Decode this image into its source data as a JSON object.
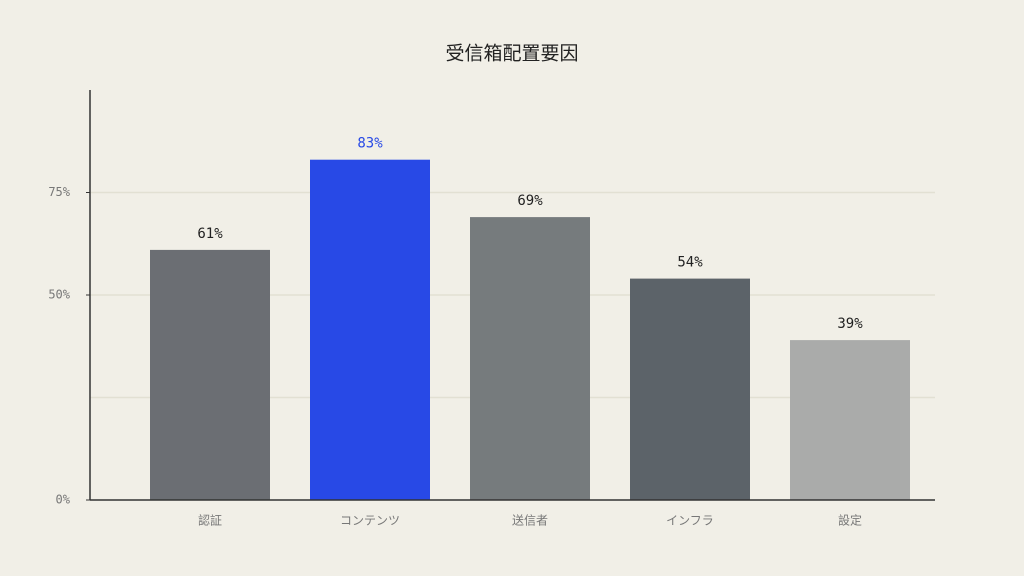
{
  "chart_data": {
    "type": "bar",
    "title": "受信箱配置要因",
    "categories": [
      "認証",
      "コンテンツ",
      "送信者",
      "インフラ",
      "設定"
    ],
    "values": [
      61,
      83,
      69,
      54,
      39
    ],
    "value_labels": [
      "61%",
      "83%",
      "69%",
      "54%",
      "39%"
    ],
    "colors": [
      "#6b6e73",
      "#2849e6",
      "#767b7d",
      "#5c6369",
      "#aaabaa"
    ],
    "value_label_colors": [
      "#222222",
      "#2849e6",
      "#222222",
      "#222222",
      "#222222"
    ],
    "ylim": [
      0,
      100
    ],
    "yticks": [
      {
        "value": 0,
        "label": "0%"
      },
      {
        "value": 50,
        "label": "50%"
      },
      {
        "value": 75,
        "label": "75%"
      }
    ],
    "gridlines": [
      25,
      50,
      75
    ],
    "grid": true
  }
}
